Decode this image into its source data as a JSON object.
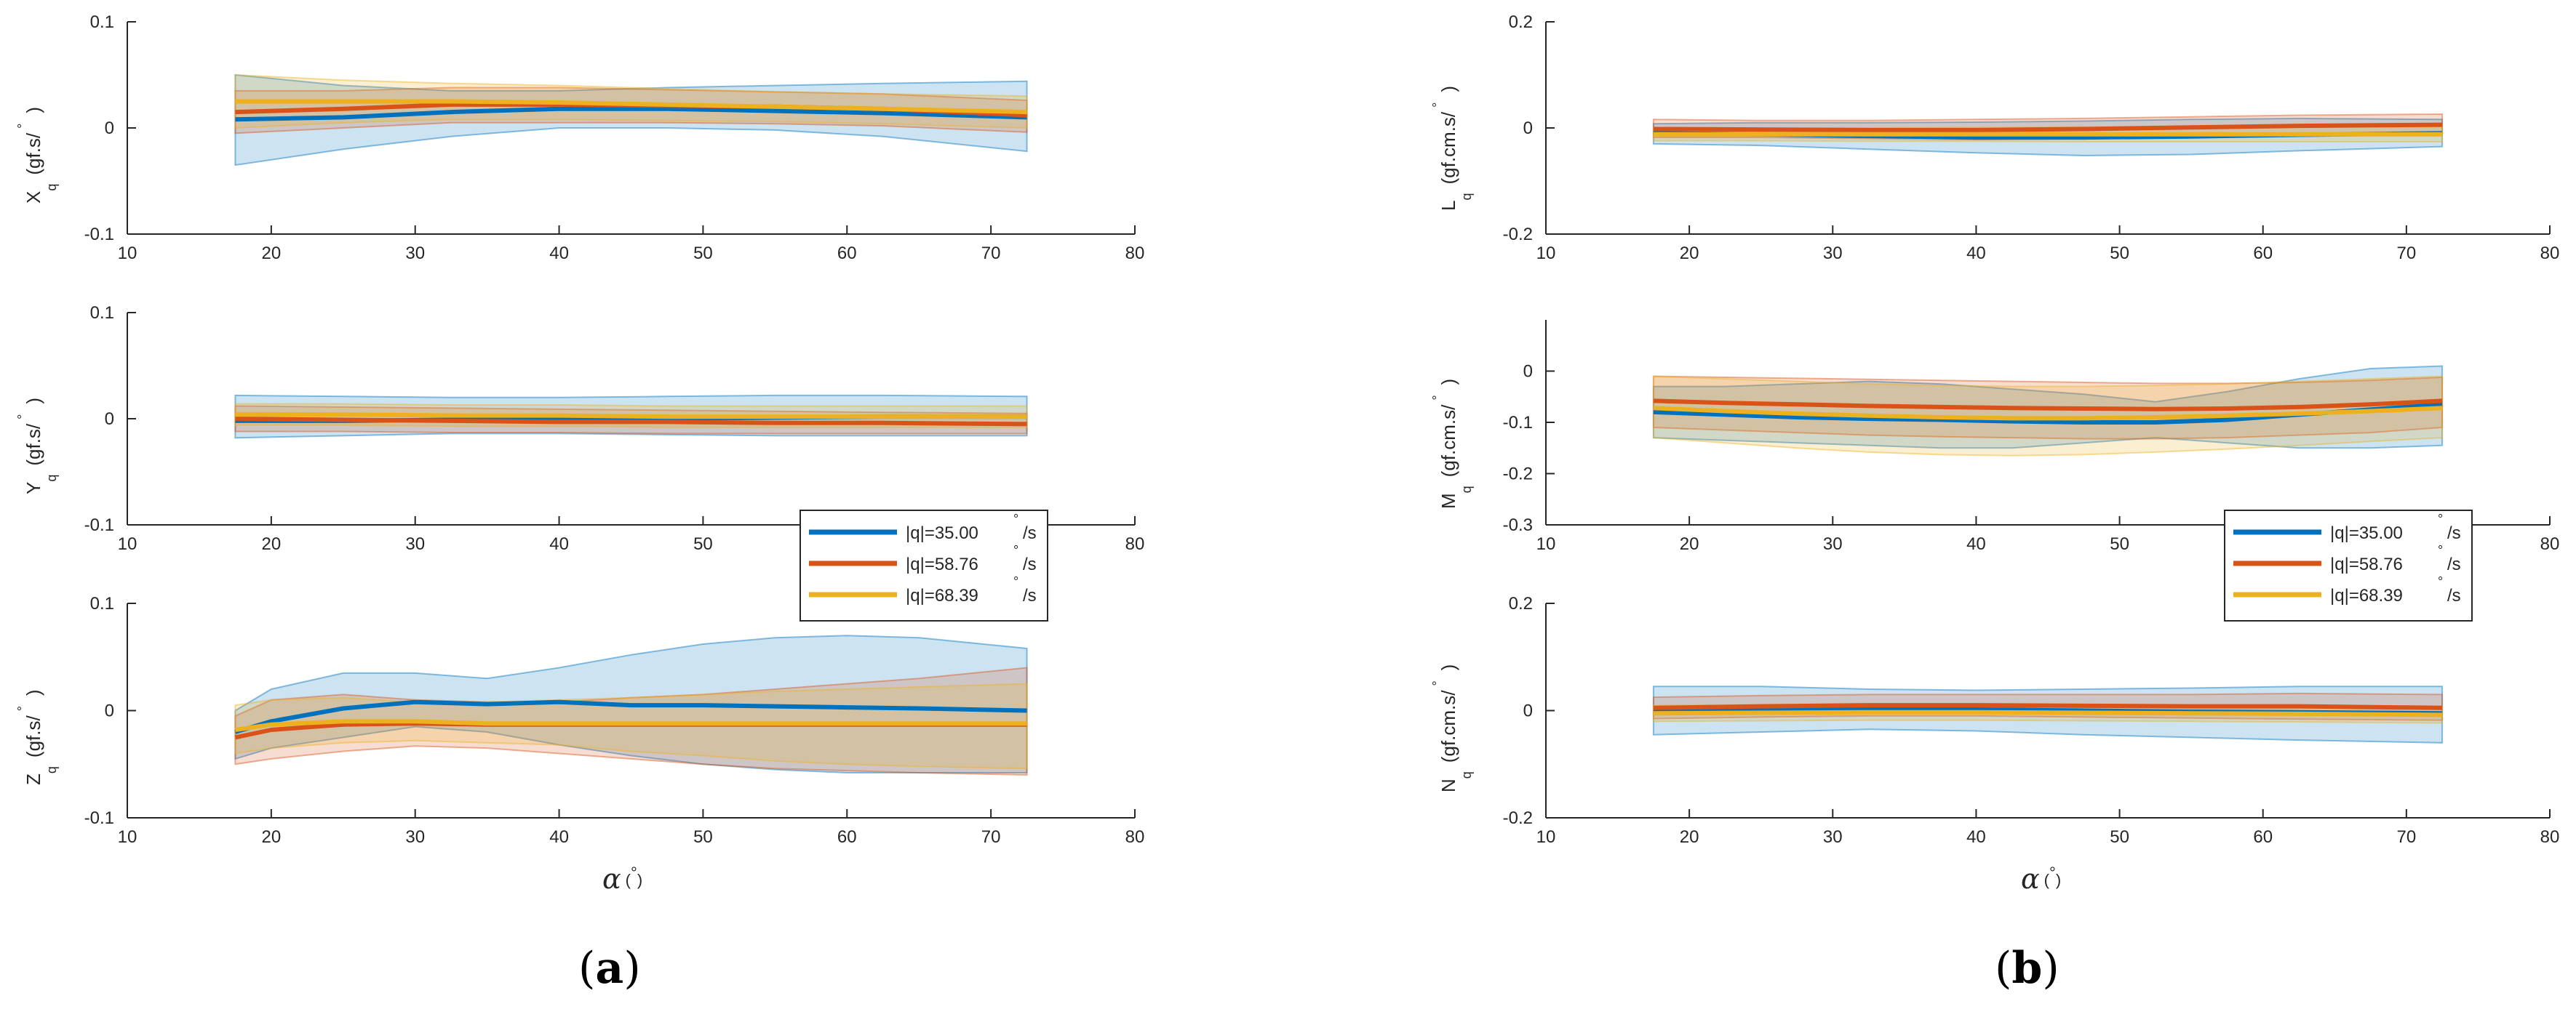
{
  "series_colors": [
    "#0072BD",
    "#D95319",
    "#EDB120"
  ],
  "chart_data": [
    {
      "type": "line",
      "id": "Xq",
      "ylabel": "X",
      "ylabel_sub": "q",
      "yunit": "(gf.s/",
      "yunit_deg": "°",
      "yunit_close": ")",
      "xlim": [
        10,
        80
      ],
      "ylim": [
        -0.1,
        0.1
      ],
      "xticks": [
        "10",
        "20",
        "30",
        "40",
        "50",
        "60",
        "70",
        "80"
      ],
      "yticks": [
        "-0.1",
        "0",
        "0.1"
      ],
      "x": [
        17.5,
        25,
        32.5,
        40,
        47.5,
        55,
        62.5,
        72.5
      ],
      "series": [
        {
          "name": "|q|=35.00",
          "mean": [
            0.008,
            0.01,
            0.015,
            0.018,
            0.018,
            0.016,
            0.014,
            0.01
          ],
          "lower": [
            -0.035,
            -0.02,
            -0.008,
            0.0,
            0.0,
            -0.002,
            -0.008,
            -0.022
          ],
          "upper": [
            0.05,
            0.04,
            0.035,
            0.035,
            0.038,
            0.04,
            0.042,
            0.044
          ]
        },
        {
          "name": "|q|=58.76",
          "mean": [
            0.015,
            0.018,
            0.022,
            0.022,
            0.021,
            0.02,
            0.018,
            0.012
          ],
          "lower": [
            -0.005,
            0.0,
            0.005,
            0.005,
            0.005,
            0.004,
            0.002,
            -0.004
          ],
          "upper": [
            0.035,
            0.035,
            0.038,
            0.038,
            0.036,
            0.034,
            0.032,
            0.026
          ]
        },
        {
          "name": "|q|=68.39",
          "mean": [
            0.025,
            0.025,
            0.025,
            0.024,
            0.022,
            0.02,
            0.018,
            0.015
          ],
          "lower": [
            0.0,
            0.005,
            0.008,
            0.008,
            0.007,
            0.006,
            0.004,
            0.0
          ],
          "upper": [
            0.05,
            0.045,
            0.042,
            0.04,
            0.037,
            0.034,
            0.032,
            0.03
          ]
        }
      ]
    },
    {
      "type": "line",
      "id": "Yq",
      "ylabel": "Y",
      "ylabel_sub": "q",
      "yunit": "(gf.s/",
      "yunit_deg": "°",
      "yunit_close": ")",
      "xlim": [
        10,
        80
      ],
      "ylim": [
        -0.1,
        0.1
      ],
      "xticks": [
        "10",
        "20",
        "30",
        "40",
        "50",
        "60",
        "70",
        "80"
      ],
      "yticks": [
        "-0.1",
        "0",
        "0.1"
      ],
      "x": [
        17.5,
        25,
        32.5,
        40,
        47.5,
        55,
        62.5,
        72.5
      ],
      "series": [
        {
          "name": "|q|=35.00",
          "mean": [
            -0.002,
            -0.002,
            -0.001,
            0.0,
            0.0,
            0.001,
            0.002,
            0.002
          ],
          "lower": [
            -0.018,
            -0.016,
            -0.014,
            -0.014,
            -0.015,
            -0.016,
            -0.016,
            -0.016
          ],
          "upper": [
            0.022,
            0.021,
            0.02,
            0.02,
            0.021,
            0.022,
            0.022,
            0.021
          ]
        },
        {
          "name": "|q|=58.76",
          "mean": [
            0.0,
            -0.001,
            -0.002,
            -0.003,
            -0.003,
            -0.004,
            -0.004,
            -0.005
          ],
          "lower": [
            -0.012,
            -0.012,
            -0.013,
            -0.013,
            -0.014,
            -0.014,
            -0.014,
            -0.014
          ],
          "upper": [
            0.012,
            0.011,
            0.01,
            0.009,
            0.008,
            0.007,
            0.006,
            0.005
          ]
        },
        {
          "name": "|q|=68.39",
          "mean": [
            0.004,
            0.004,
            0.003,
            0.003,
            0.002,
            0.002,
            0.002,
            0.002
          ],
          "lower": [
            -0.006,
            -0.006,
            -0.007,
            -0.007,
            -0.008,
            -0.008,
            -0.008,
            -0.008
          ],
          "upper": [
            0.014,
            0.014,
            0.013,
            0.013,
            0.012,
            0.012,
            0.012,
            0.012
          ]
        }
      ]
    },
    {
      "type": "line",
      "id": "Zq",
      "ylabel": "Z",
      "ylabel_sub": "q",
      "yunit": "(gf.s/",
      "yunit_deg": "°",
      "yunit_close": ")",
      "xlabel": "α",
      "xlabel_deg": "°",
      "xlim": [
        10,
        80
      ],
      "ylim": [
        -0.1,
        0.1
      ],
      "xticks": [
        "10",
        "20",
        "30",
        "40",
        "50",
        "60",
        "70",
        "80"
      ],
      "yticks": [
        "-0.1",
        "0",
        "0.1"
      ],
      "x": [
        17.5,
        20,
        25,
        30,
        35,
        40,
        45,
        50,
        55,
        60,
        65,
        72.5
      ],
      "series": [
        {
          "name": "|q|=35.00",
          "mean": [
            -0.02,
            -0.01,
            0.002,
            0.008,
            0.006,
            0.008,
            0.005,
            0.005,
            0.004,
            0.003,
            0.002,
            0.0
          ],
          "lower": [
            -0.045,
            -0.035,
            -0.025,
            -0.015,
            -0.02,
            -0.032,
            -0.042,
            -0.05,
            -0.055,
            -0.058,
            -0.058,
            -0.058
          ],
          "upper": [
            0.0,
            0.02,
            0.035,
            0.035,
            0.03,
            0.04,
            0.052,
            0.062,
            0.068,
            0.07,
            0.068,
            0.058
          ]
        },
        {
          "name": "|q|=58.76",
          "mean": [
            -0.025,
            -0.018,
            -0.013,
            -0.012,
            -0.013,
            -0.013,
            -0.013,
            -0.013,
            -0.013,
            -0.013,
            -0.013,
            -0.013
          ],
          "lower": [
            -0.05,
            -0.045,
            -0.038,
            -0.033,
            -0.035,
            -0.04,
            -0.045,
            -0.05,
            -0.054,
            -0.056,
            -0.058,
            -0.06
          ],
          "upper": [
            -0.005,
            0.01,
            0.015,
            0.01,
            0.008,
            0.008,
            0.012,
            0.015,
            0.02,
            0.025,
            0.03,
            0.04
          ]
        },
        {
          "name": "|q|=68.39",
          "mean": [
            -0.018,
            -0.013,
            -0.01,
            -0.01,
            -0.012,
            -0.012,
            -0.012,
            -0.012,
            -0.012,
            -0.012,
            -0.012,
            -0.012
          ],
          "lower": [
            -0.04,
            -0.035,
            -0.03,
            -0.028,
            -0.03,
            -0.032,
            -0.038,
            -0.042,
            -0.047,
            -0.05,
            -0.052,
            -0.054
          ],
          "upper": [
            0.005,
            0.01,
            0.012,
            0.008,
            0.008,
            0.01,
            0.012,
            0.015,
            0.018,
            0.02,
            0.022,
            0.025
          ]
        }
      ]
    },
    {
      "type": "line",
      "id": "Lq",
      "ylabel": "L",
      "ylabel_sub": "q",
      "yunit": "(gf.cm.s/",
      "yunit_deg": "°",
      "yunit_close": ")",
      "xlim": [
        10,
        80
      ],
      "ylim": [
        -0.2,
        0.2
      ],
      "xticks": [
        "10",
        "20",
        "30",
        "40",
        "50",
        "60",
        "70",
        "80"
      ],
      "yticks": [
        "-0.2",
        "0",
        "0.2"
      ],
      "x": [
        17.5,
        25,
        32.5,
        40,
        47.5,
        55,
        62.5,
        72.5
      ],
      "series": [
        {
          "name": "|q|=35.00",
          "mean": [
            -0.01,
            -0.012,
            -0.015,
            -0.018,
            -0.018,
            -0.016,
            -0.013,
            -0.01
          ],
          "lower": [
            -0.03,
            -0.033,
            -0.04,
            -0.047,
            -0.052,
            -0.05,
            -0.043,
            -0.035
          ],
          "upper": [
            0.008,
            0.01,
            0.01,
            0.011,
            0.013,
            0.016,
            0.018,
            0.016
          ]
        },
        {
          "name": "|q|=58.76",
          "mean": [
            -0.002,
            -0.003,
            -0.004,
            -0.004,
            -0.002,
            0.001,
            0.004,
            0.006
          ],
          "lower": [
            -0.018,
            -0.018,
            -0.02,
            -0.022,
            -0.02,
            -0.017,
            -0.013,
            -0.01
          ],
          "upper": [
            0.016,
            0.014,
            0.014,
            0.016,
            0.018,
            0.021,
            0.024,
            0.026
          ]
        },
        {
          "name": "|q|=68.39",
          "mean": [
            -0.012,
            -0.012,
            -0.012,
            -0.012,
            -0.012,
            -0.012,
            -0.012,
            -0.012
          ],
          "lower": [
            -0.024,
            -0.024,
            -0.025,
            -0.025,
            -0.026,
            -0.026,
            -0.026,
            -0.026
          ],
          "upper": [
            0.0,
            0.0,
            0.0,
            0.001,
            0.002,
            0.002,
            0.002,
            0.002
          ]
        }
      ]
    },
    {
      "type": "line",
      "id": "Mq",
      "ylabel": "M",
      "ylabel_sub": "q",
      "yunit": "(gf.cm.s/",
      "yunit_deg": "°",
      "yunit_close": ")",
      "xlim": [
        10,
        80
      ],
      "ylim": [
        -0.3,
        0.1
      ],
      "xticks": [
        "10",
        "20",
        "30",
        "40",
        "50",
        "60",
        "70",
        "80"
      ],
      "yticks": [
        "-0.3",
        "-0.2",
        "-0.1",
        "0"
      ],
      "x": [
        17.5,
        22.5,
        27.5,
        32.5,
        37.5,
        42.5,
        47.5,
        52.5,
        57.5,
        62.5,
        67.5,
        72.5
      ],
      "series": [
        {
          "name": "|q|=35.00",
          "mean": [
            -0.08,
            -0.085,
            -0.09,
            -0.093,
            -0.095,
            -0.098,
            -0.1,
            -0.1,
            -0.095,
            -0.085,
            -0.075,
            -0.065
          ],
          "lower": [
            -0.13,
            -0.135,
            -0.14,
            -0.145,
            -0.15,
            -0.15,
            -0.14,
            -0.13,
            -0.14,
            -0.15,
            -0.15,
            -0.145
          ],
          "upper": [
            -0.03,
            -0.03,
            -0.025,
            -0.02,
            -0.025,
            -0.035,
            -0.045,
            -0.06,
            -0.04,
            -0.015,
            0.005,
            0.01
          ]
        },
        {
          "name": "|q|=58.76",
          "mean": [
            -0.058,
            -0.062,
            -0.065,
            -0.068,
            -0.07,
            -0.072,
            -0.073,
            -0.074,
            -0.073,
            -0.07,
            -0.065,
            -0.058
          ],
          "lower": [
            -0.11,
            -0.115,
            -0.12,
            -0.125,
            -0.128,
            -0.13,
            -0.132,
            -0.132,
            -0.13,
            -0.125,
            -0.12,
            -0.11
          ],
          "upper": [
            -0.01,
            -0.012,
            -0.014,
            -0.016,
            -0.018,
            -0.02,
            -0.022,
            -0.024,
            -0.024,
            -0.022,
            -0.018,
            -0.012
          ]
        },
        {
          "name": "|q|=68.39",
          "mean": [
            -0.072,
            -0.078,
            -0.083,
            -0.087,
            -0.09,
            -0.092,
            -0.092,
            -0.09,
            -0.087,
            -0.083,
            -0.078,
            -0.072
          ],
          "lower": [
            -0.13,
            -0.14,
            -0.15,
            -0.158,
            -0.163,
            -0.165,
            -0.163,
            -0.158,
            -0.152,
            -0.145,
            -0.137,
            -0.13
          ],
          "upper": [
            -0.01,
            -0.015,
            -0.02,
            -0.025,
            -0.028,
            -0.03,
            -0.03,
            -0.028,
            -0.025,
            -0.02,
            -0.015,
            -0.01
          ]
        }
      ]
    },
    {
      "type": "line",
      "id": "Nq",
      "ylabel": "N",
      "ylabel_sub": "q",
      "yunit": "(gf.cm.s/",
      "yunit_deg": "°",
      "yunit_close": ")",
      "xlabel": "α",
      "xlabel_deg": "°",
      "xlim": [
        10,
        80
      ],
      "ylim": [
        -0.2,
        0.2
      ],
      "xticks": [
        "10",
        "20",
        "30",
        "40",
        "50",
        "60",
        "70",
        "80"
      ],
      "yticks": [
        "-0.2",
        "0",
        "0.2"
      ],
      "x": [
        17.5,
        25,
        32.5,
        40,
        47.5,
        55,
        62.5,
        72.5
      ],
      "series": [
        {
          "name": "|q|=35.00",
          "mean": [
            0.0,
            0.002,
            0.003,
            0.002,
            0.0,
            -0.002,
            -0.003,
            -0.005
          ],
          "lower": [
            -0.045,
            -0.04,
            -0.035,
            -0.038,
            -0.045,
            -0.05,
            -0.055,
            -0.06
          ],
          "upper": [
            0.045,
            0.045,
            0.04,
            0.038,
            0.04,
            0.042,
            0.045,
            0.045
          ]
        },
        {
          "name": "|q|=58.76",
          "mean": [
            0.005,
            0.008,
            0.01,
            0.01,
            0.009,
            0.008,
            0.008,
            0.005
          ],
          "lower": [
            -0.015,
            -0.012,
            -0.01,
            -0.01,
            -0.012,
            -0.014,
            -0.016,
            -0.018
          ],
          "upper": [
            0.025,
            0.028,
            0.03,
            0.03,
            0.03,
            0.03,
            0.032,
            0.03
          ]
        },
        {
          "name": "|q|=68.39",
          "mean": [
            -0.005,
            -0.004,
            -0.003,
            -0.003,
            -0.004,
            -0.005,
            -0.006,
            -0.008
          ],
          "lower": [
            -0.02,
            -0.019,
            -0.018,
            -0.018,
            -0.019,
            -0.02,
            -0.021,
            -0.023
          ],
          "upper": [
            0.01,
            0.011,
            0.012,
            0.012,
            0.011,
            0.01,
            0.009,
            0.007
          ]
        }
      ]
    }
  ],
  "legends": [
    {
      "entries": [
        "|q|=35.00",
        "|q|=58.76",
        "|q|=68.39"
      ],
      "unit_deg": "°",
      "unit": "/s"
    },
    {
      "entries": [
        "|q|=35.00",
        "|q|=58.76",
        "|q|=68.39"
      ],
      "unit_deg": "°",
      "unit": "/s"
    }
  ],
  "captions": [
    {
      "open": "(",
      "letter": "a",
      "close": ")"
    },
    {
      "open": "(",
      "letter": "b",
      "close": ")"
    }
  ]
}
